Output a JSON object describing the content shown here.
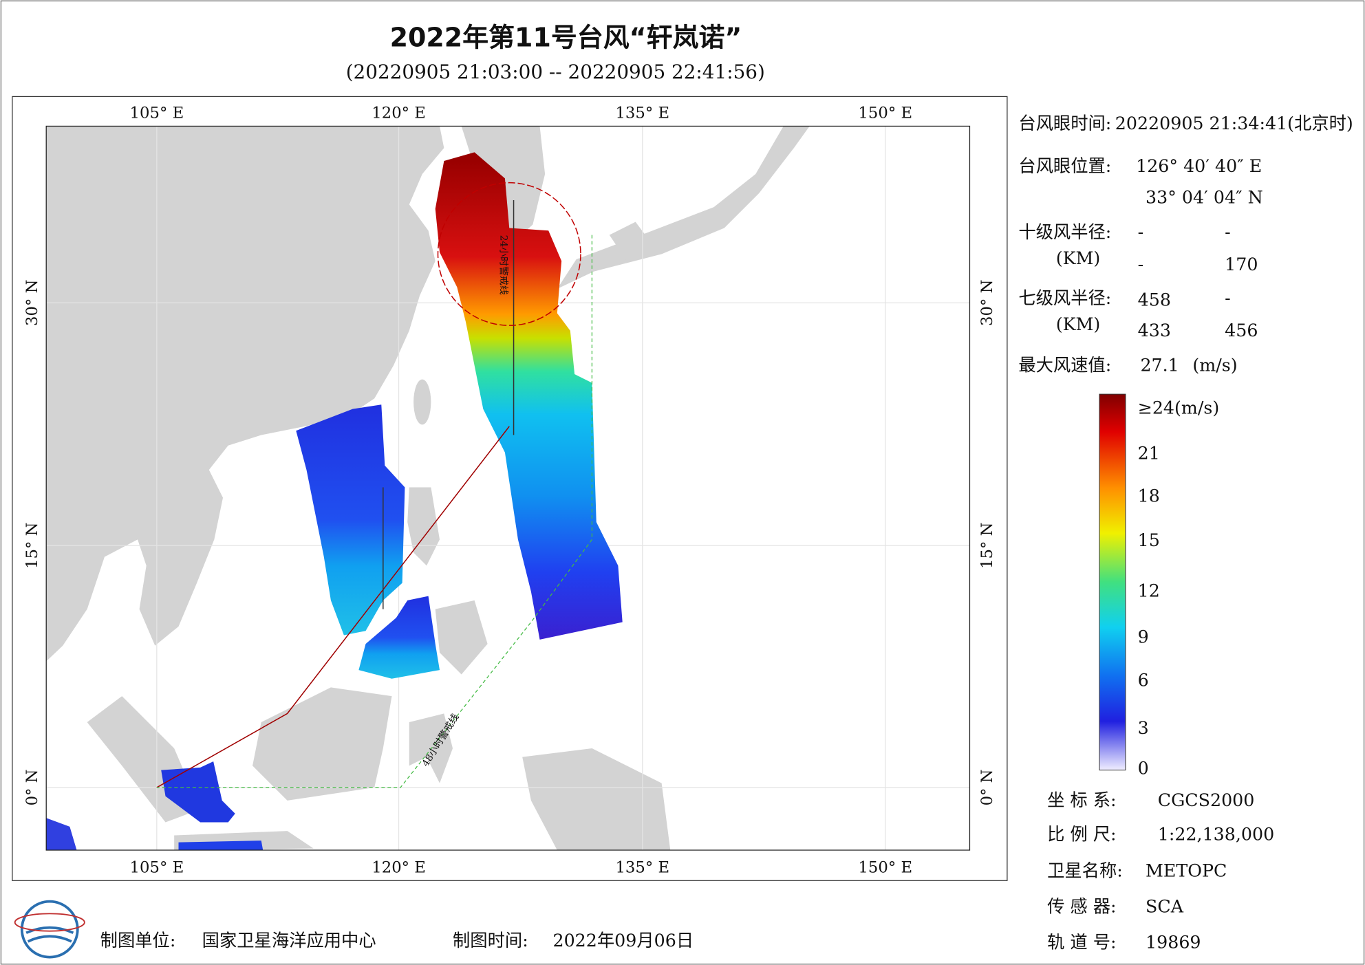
{
  "header": {
    "title": "2022年第11号台风“轩岚诺”",
    "subtitle": "(20220905 21:03:00 -- 20220905 22:41:56)"
  },
  "map": {
    "lon_labels": [
      "105° E",
      "120° E",
      "135° E",
      "150° E"
    ],
    "lat_labels": [
      "30° N",
      "15° N",
      "0° N"
    ],
    "annotations": [
      "48小时警戒线",
      "24小时警戒线"
    ]
  },
  "info": {
    "eye_time_label": "台风眼时间:",
    "eye_time": "20220905 21:34:41(北京时)",
    "eye_pos_label": "台风眼位置:",
    "eye_lon": "126° 40′ 40″ E",
    "eye_lat": "33° 04′ 04″ N",
    "r10_label": "十级风半径:",
    "km": "(KM)",
    "r10": [
      "-",
      "-",
      "-",
      "170"
    ],
    "r7_label": "七级风半径:",
    "r7": [
      "458",
      "-",
      "433",
      "456"
    ],
    "max_label": "最大风速值:",
    "max_value": "27.1",
    "max_unit": "(m/s)"
  },
  "colorbar": {
    "top_label": "≥24(m/s)",
    "ticks": [
      "21",
      "18",
      "15",
      "12",
      "9",
      "6",
      "3",
      "0"
    ]
  },
  "meta": [
    {
      "label": "坐 标 系:",
      "value": "CGCS2000"
    },
    {
      "label": "比 例 尺:",
      "value": "1:22,138,000"
    },
    {
      "label": "卫星名称:",
      "value": "METOPC"
    },
    {
      "label": "传 感 器:",
      "value": "SCA"
    },
    {
      "label": "轨 道 号:",
      "value": "19869"
    }
  ],
  "footer": {
    "maker_label": "制图单位:",
    "maker": "国家卫星海洋应用中心",
    "time_label": "制图时间:",
    "time": "2022年09月06日"
  }
}
